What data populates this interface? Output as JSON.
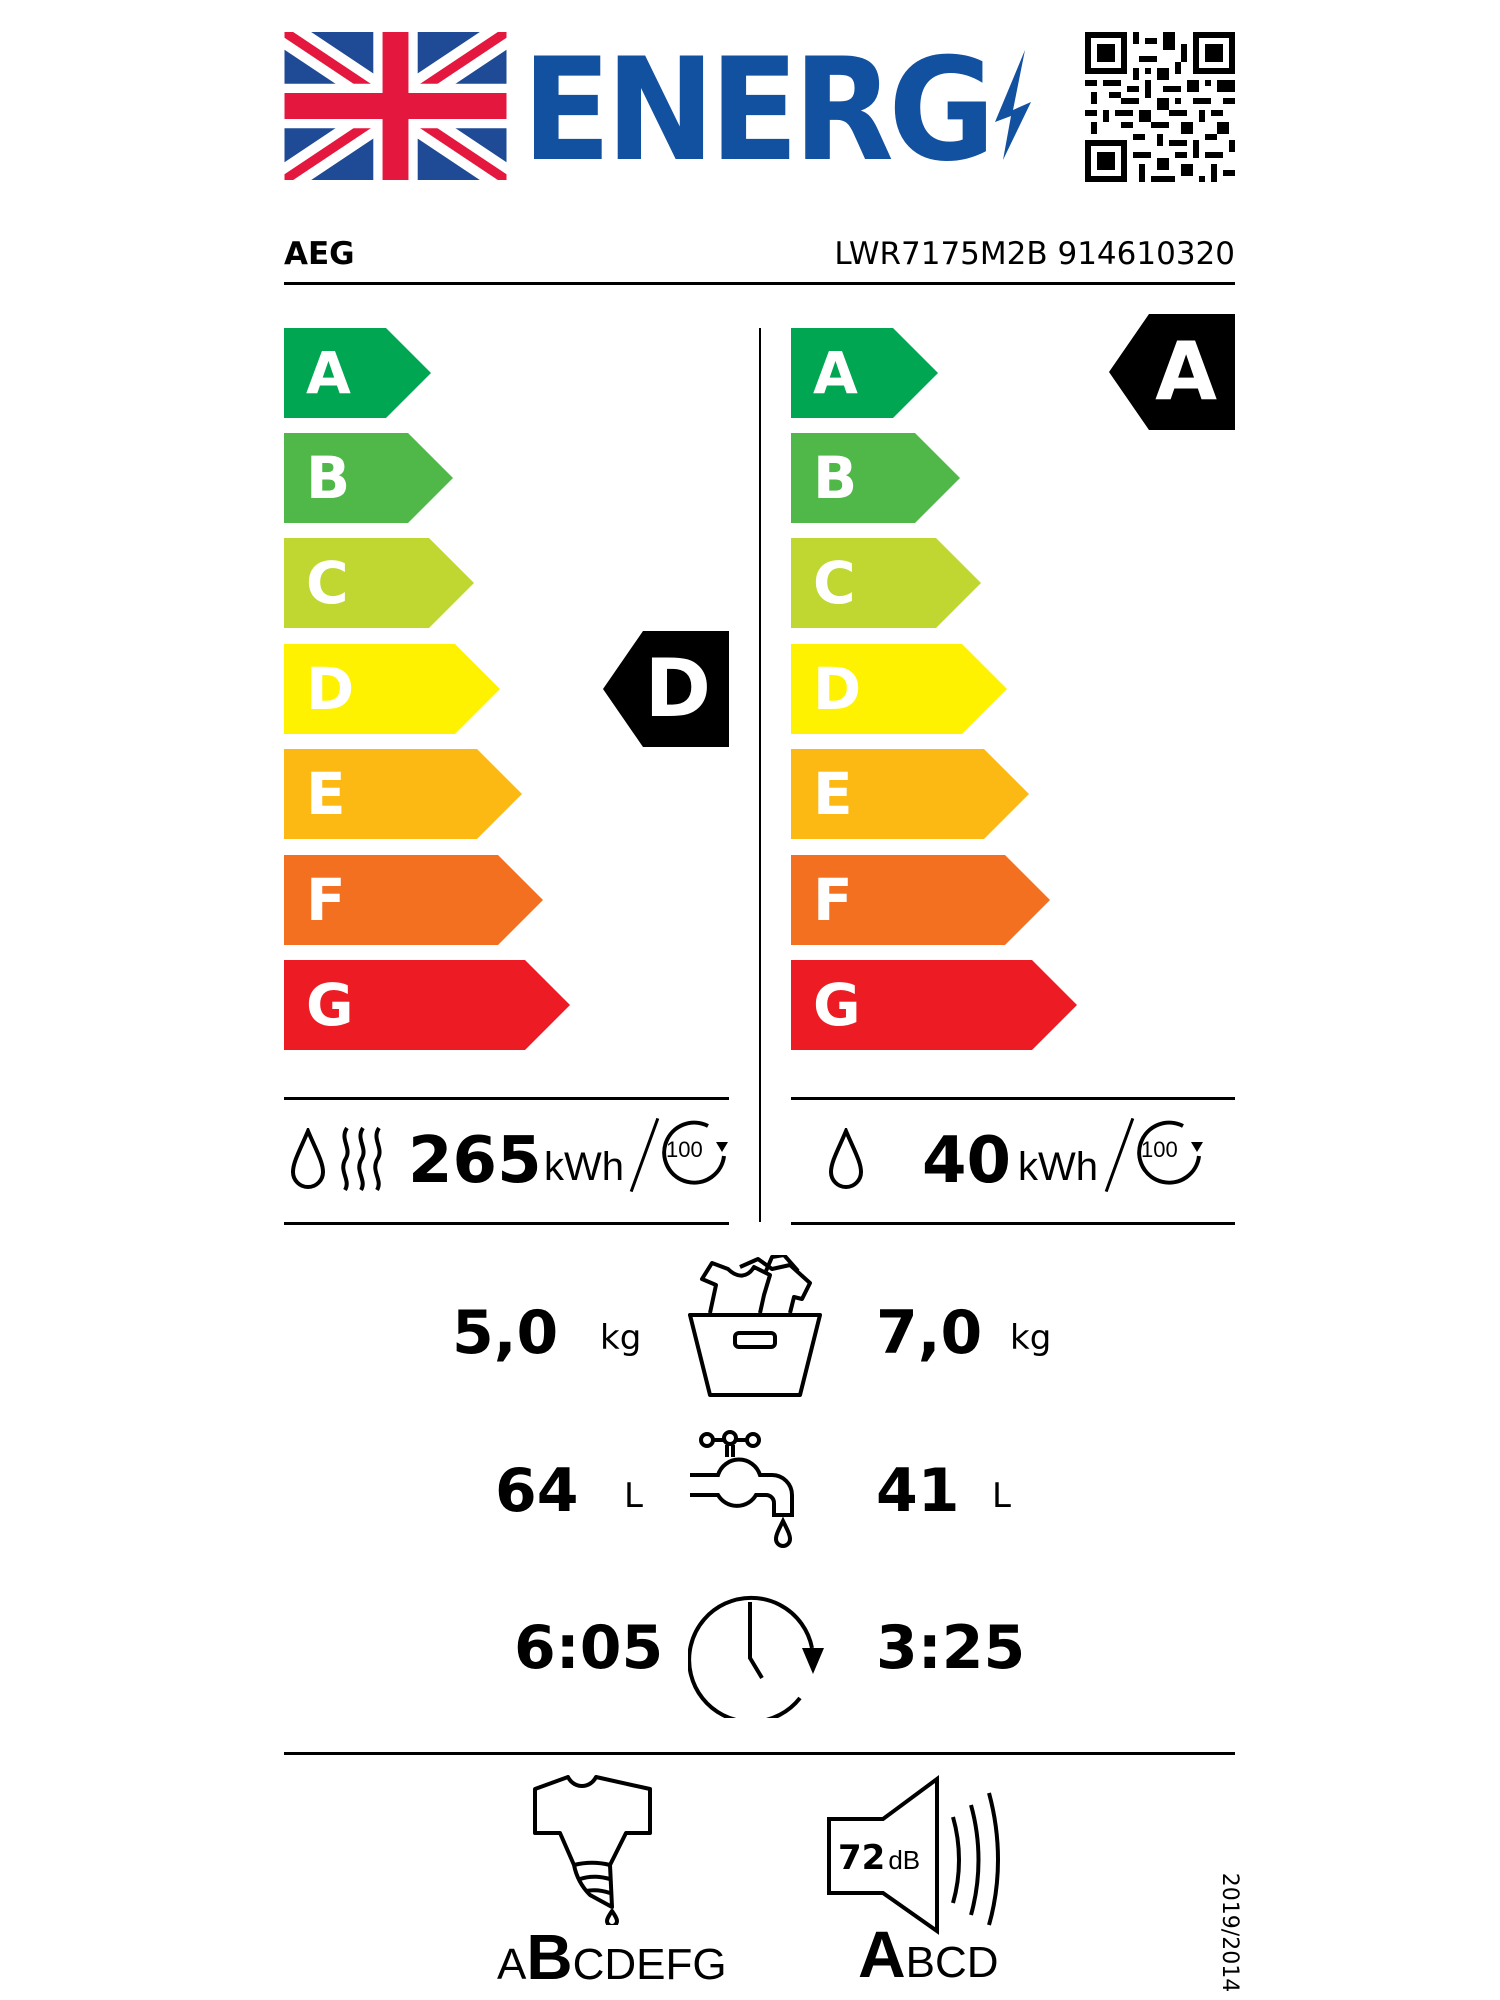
{
  "header": {
    "title": "ENERG",
    "flag": "united-kingdom-flag",
    "qr": "qr-code"
  },
  "supplier": {
    "brand": "AEG",
    "model": "LWR7175M2B 914610320"
  },
  "scale": {
    "classes": [
      "A",
      "B",
      "C",
      "D",
      "E",
      "F",
      "G"
    ],
    "colors": [
      "#00a651",
      "#50b848",
      "#bfd730",
      "#fff200",
      "#fdb913",
      "#f37021",
      "#ed1c24"
    ]
  },
  "washer_dryer": {
    "energy_class": "D",
    "energy_value": "265",
    "energy_unit": "kWh",
    "cycles": "100",
    "capacity": "5,0",
    "capacity_unit": "kg",
    "water": "64",
    "water_unit": "L",
    "duration": "6:05"
  },
  "washing": {
    "energy_class": "A",
    "energy_value": "40",
    "energy_unit": "kWh",
    "cycles": "100",
    "capacity": "7,0",
    "capacity_unit": "kg",
    "water": "41",
    "water_unit": "L",
    "duration": "3:25"
  },
  "spin": {
    "pre": "A",
    "selected": "B",
    "post": "CDEFG"
  },
  "noise": {
    "value": "72",
    "unit": "dB",
    "selected": "A",
    "post": "BCD"
  },
  "regulation": "2019/2014"
}
